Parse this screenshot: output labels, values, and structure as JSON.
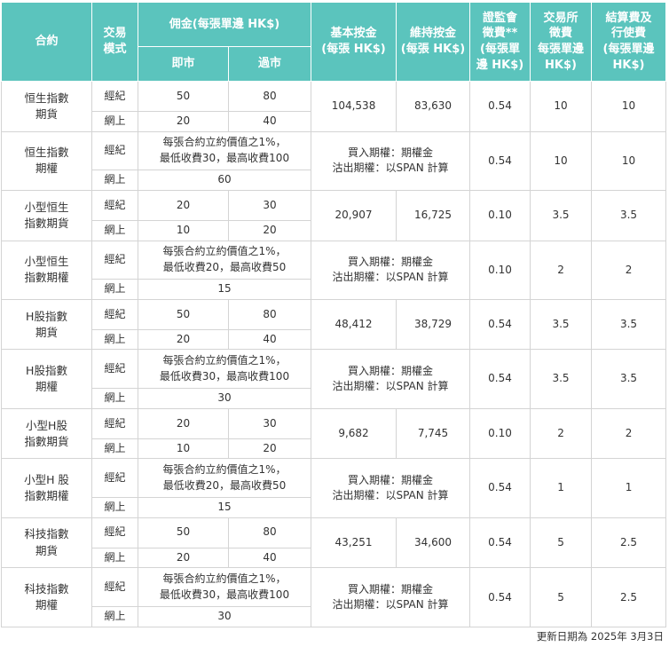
{
  "header": {
    "contract": "合約",
    "mode": "交易\n模式",
    "commission": "佣金(每張單邊 HK$)",
    "immediate": "即市",
    "overnight": "過市",
    "initial_margin": "基本按金\n(每張 HK$)",
    "maintenance_margin": "維持按金\n(每張 HK$)",
    "sfc_levy": "證監會\n徵費**\n(每張單\n邊 HK$)",
    "exchange_fee": "交易所\n徵費\n每張單邊\nHK$)",
    "clearing_fee": "結算費及\n行使費\n(每張單邊\nHK$)"
  },
  "mode_labels": {
    "broker": "經紀",
    "online": "網上"
  },
  "futures": {
    "hsi": {
      "name": "恒生指數\n期貨",
      "broker_immediate": "50",
      "broker_overnight": "80",
      "online_immediate": "20",
      "online_overnight": "40",
      "initial": "104,538",
      "maintenance": "83,630",
      "levy": "0.54",
      "exchange": "10",
      "clearing": "10"
    },
    "mhi": {
      "name": "小型恒生\n指數期貨",
      "broker_immediate": "20",
      "broker_overnight": "30",
      "online_immediate": "10",
      "online_overnight": "20",
      "initial": "20,907",
      "maintenance": "16,725",
      "levy": "0.10",
      "exchange": "3.5",
      "clearing": "3.5"
    },
    "hhi": {
      "name": "H股指數\n期貨",
      "broker_immediate": "50",
      "broker_overnight": "80",
      "online_immediate": "20",
      "online_overnight": "40",
      "initial": "48,412",
      "maintenance": "38,729",
      "levy": "0.54",
      "exchange": "3.5",
      "clearing": "3.5"
    },
    "mch": {
      "name": "小型H股\n指數期貨",
      "broker_immediate": "20",
      "broker_overnight": "30",
      "online_immediate": "10",
      "online_overnight": "20",
      "initial": "9,682",
      "maintenance": "7,745",
      "levy": "0.10",
      "exchange": "2",
      "clearing": "2"
    },
    "htf": {
      "name": "科技指數\n期貨",
      "broker_immediate": "50",
      "broker_overnight": "80",
      "online_immediate": "20",
      "online_overnight": "40",
      "initial": "43,251",
      "maintenance": "34,600",
      "levy": "0.54",
      "exchange": "5",
      "clearing": "2.5"
    }
  },
  "options": {
    "hsi": {
      "name": "恒生指數\n期權",
      "broker_commission": "每張合約立約價值之1%，\n最低收費30，最高收費100",
      "online_commission": "60",
      "margin": "買入期權：期權金\n沽出期權：以SPAN 計算",
      "levy": "0.54",
      "exchange": "10",
      "clearing": "10"
    },
    "mhi": {
      "name": "小型恒生\n指數期權",
      "broker_commission": "每張合約立約價值之1%，\n最低收費20，最高收費50",
      "online_commission": "15",
      "margin": "買入期權：期權金\n沽出期權：以SPAN 計算",
      "levy": "0.10",
      "exchange": "2",
      "clearing": "2"
    },
    "hhi": {
      "name": "H股指數\n期權",
      "broker_commission": "每張合約立約價值之1%，\n最低收費30，最高收費100",
      "online_commission": "30",
      "margin": "買入期權：期權金\n沽出期權：以SPAN 計算",
      "levy": "0.54",
      "exchange": "3.5",
      "clearing": "3.5"
    },
    "mch": {
      "name": "小型H 股\n指數期權",
      "broker_commission": "每張合約立約價值之1%，\n最低收費20，最高收費50",
      "online_commission": "15",
      "margin": "買入期權：期權金\n沽出期權：以SPAN 計算",
      "levy": "0.54",
      "exchange": "1",
      "clearing": "1"
    },
    "htf": {
      "name": "科技指數\n期權",
      "broker_commission": "每張合約立約價值之1%，\n最低收費30，最高收費100",
      "online_commission": "30",
      "margin": "買入期權：期權金\n沽出期權：以SPAN 計算",
      "levy": "0.54",
      "exchange": "5",
      "clearing": "2.5"
    }
  },
  "footer": {
    "updated": "更新日期為 2025年 3月3日"
  },
  "colors": {
    "header_bg": "#5bc4bd",
    "border": "#d4d4d4"
  }
}
